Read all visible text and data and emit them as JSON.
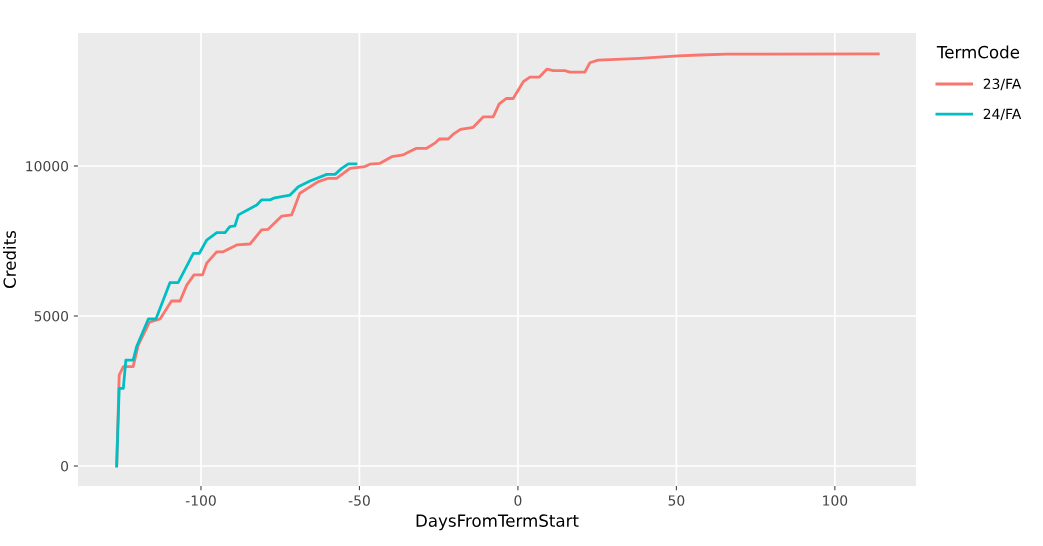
{
  "chart_data": {
    "type": "line",
    "xlabel": "DaysFromTermStart",
    "ylabel": "Credits",
    "legend_title": "TermCode",
    "legend": "right",
    "grid": true,
    "line_style": "solid",
    "marker": "none",
    "xlim": [
      -138.8,
      125.6
    ],
    "ylim": [
      -667,
      14433
    ],
    "xticks": [
      -100,
      -50,
      0,
      50,
      100
    ],
    "yticks": [
      0,
      5000,
      10000
    ],
    "series": [
      {
        "name": "23/FA",
        "color": "#f8766d",
        "x": [
          -126.6,
          -125.8,
          -124.5,
          -121.4,
          -119.8,
          -116.3,
          -112.9,
          -109.3,
          -106.6,
          -104.5,
          -102.2,
          -99.5,
          -98.2,
          -95.0,
          -93.0,
          -88.7,
          -84.5,
          -80.9,
          -78.8,
          -74.5,
          -71.4,
          -68.8,
          -63.0,
          -59.8,
          -57.2,
          -53.0,
          -48.3,
          -46.7,
          -43.5,
          -39.8,
          -36.2,
          -34.6,
          -32.0,
          -28.8,
          -26.2,
          -24.8,
          -22.0,
          -20.4,
          -18.1,
          -14.1,
          -10.9,
          -7.8,
          -5.9,
          -3.6,
          -1.5,
          1.7,
          3.8,
          6.7,
          9.2,
          11.1,
          14.8,
          16.4,
          21.1,
          22.7,
          25.3,
          38.5,
          50.6,
          57.4,
          65.8,
          113.7
        ],
        "values": [
          0,
          3030,
          3310,
          3310,
          4030,
          4790,
          4900,
          5500,
          5500,
          6030,
          6370,
          6370,
          6760,
          7140,
          7140,
          7370,
          7400,
          7870,
          7890,
          8330,
          8370,
          9090,
          9480,
          9590,
          9590,
          9920,
          9980,
          10060,
          10090,
          10310,
          10370,
          10460,
          10590,
          10590,
          10760,
          10900,
          10900,
          11060,
          11220,
          11290,
          11640,
          11640,
          12070,
          12250,
          12250,
          12810,
          12960,
          12960,
          13230,
          13180,
          13180,
          13130,
          13130,
          13440,
          13530,
          13590,
          13670,
          13700,
          13730,
          13740
        ]
      },
      {
        "name": "24/FA",
        "color": "#00bfc4",
        "x": [
          -126.6,
          -125.8,
          -124.5,
          -123.7,
          -121.4,
          -120.3,
          -116.6,
          -114.2,
          -109.8,
          -107.2,
          -102.4,
          -100.5,
          -98.2,
          -95.0,
          -92.4,
          -90.9,
          -89.3,
          -88.2,
          -82.4,
          -80.9,
          -78.2,
          -76.7,
          -71.9,
          -69.3,
          -65.6,
          -60.3,
          -57.7,
          -55.6,
          -53.5,
          -51.1
        ],
        "values": [
          0,
          2590,
          2590,
          3530,
          3530,
          3980,
          4900,
          4900,
          6110,
          6110,
          7090,
          7090,
          7530,
          7780,
          7780,
          7980,
          8000,
          8370,
          8700,
          8870,
          8870,
          8940,
          9030,
          9310,
          9500,
          9720,
          9720,
          9920,
          10070,
          10070
        ]
      }
    ]
  }
}
